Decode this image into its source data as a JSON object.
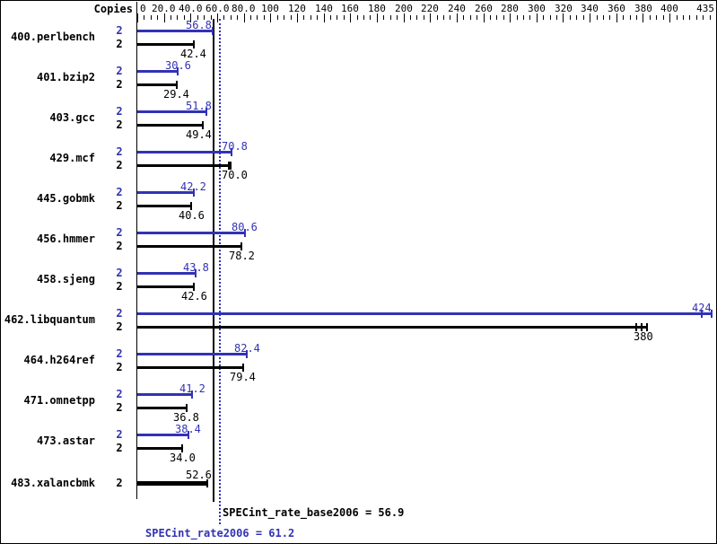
{
  "header": {
    "copies_label": "Copies"
  },
  "colors": {
    "peak": "#3232b4",
    "base": "#000000",
    "background": "#ffffff"
  },
  "summary": {
    "base_text": "SPECint_rate_base2006 = 56.9",
    "peak_text": "SPECint_rate2006 = 61.2"
  },
  "chart_data": {
    "type": "bar",
    "orientation": "horizontal",
    "legend": "none",
    "grid": "off",
    "axis": {
      "position": "top",
      "xlim": [
        0,
        435
      ],
      "minor_step": 5,
      "major_ticks": [
        {
          "value": 0,
          "label": "0"
        },
        {
          "value": 20,
          "label": "20.0"
        },
        {
          "value": 40,
          "label": "40.0"
        },
        {
          "value": 60,
          "label": "60.0"
        },
        {
          "value": 80,
          "label": "80.0"
        },
        {
          "value": 100,
          "label": "100"
        },
        {
          "value": 120,
          "label": "120"
        },
        {
          "value": 140,
          "label": "140"
        },
        {
          "value": 160,
          "label": "160"
        },
        {
          "value": 180,
          "label": "180"
        },
        {
          "value": 200,
          "label": "200"
        },
        {
          "value": 220,
          "label": "220"
        },
        {
          "value": 240,
          "label": "240"
        },
        {
          "value": 260,
          "label": "260"
        },
        {
          "value": 280,
          "label": "280"
        },
        {
          "value": 300,
          "label": "300"
        },
        {
          "value": 320,
          "label": "320"
        },
        {
          "value": 340,
          "label": "340"
        },
        {
          "value": 360,
          "label": "360"
        },
        {
          "value": 380,
          "label": "380"
        },
        {
          "value": 400,
          "label": "400"
        },
        {
          "value": 435,
          "label": "435"
        }
      ]
    },
    "series_names": [
      "SPECint_rate2006 (peak, blue)",
      "SPECint_rate_base2006 (base, black)"
    ],
    "benchmarks": [
      {
        "name": "400.perlbench",
        "copies": "2",
        "peak": {
          "value": 56.8,
          "label": "56.8"
        },
        "base": {
          "value": 42.4,
          "label": "42.4"
        }
      },
      {
        "name": "401.bzip2",
        "copies": "2",
        "peak": {
          "value": 30.6,
          "label": "30.6"
        },
        "base": {
          "value": 29.4,
          "label": "29.4"
        }
      },
      {
        "name": "403.gcc",
        "copies": "2",
        "peak": {
          "value": 51.8,
          "label": "51.8"
        },
        "base": {
          "value": 49.4,
          "label": "49.4"
        }
      },
      {
        "name": "429.mcf",
        "copies": "2",
        "peak": {
          "value": 70.8,
          "label": "70.8"
        },
        "base": {
          "value": 70.0,
          "label": "70.0",
          "run_ticks": [
            68.6,
            70.0
          ]
        }
      },
      {
        "name": "445.gobmk",
        "copies": "2",
        "peak": {
          "value": 42.2,
          "label": "42.2"
        },
        "base": {
          "value": 40.6,
          "label": "40.6"
        }
      },
      {
        "name": "456.hmmer",
        "copies": "2",
        "peak": {
          "value": 80.6,
          "label": "80.6"
        },
        "base": {
          "value": 78.2,
          "label": "78.2"
        }
      },
      {
        "name": "458.sjeng",
        "copies": "2",
        "peak": {
          "value": 43.8,
          "label": "43.8"
        },
        "base": {
          "value": 42.6,
          "label": "42.6"
        }
      },
      {
        "name": "462.libquantum",
        "copies": "2",
        "peak": {
          "value": 424,
          "label": "424",
          "run_ticks": [
            424,
            431.5
          ]
        },
        "base": {
          "value": 380,
          "label": "380",
          "run_ticks": [
            375,
            379,
            383
          ]
        }
      },
      {
        "name": "464.h264ref",
        "copies": "2",
        "peak": {
          "value": 82.4,
          "label": "82.4"
        },
        "base": {
          "value": 79.4,
          "label": "79.4"
        }
      },
      {
        "name": "471.omnetpp",
        "copies": "2",
        "peak": {
          "value": 41.2,
          "label": "41.2"
        },
        "base": {
          "value": 36.8,
          "label": "36.8"
        }
      },
      {
        "name": "473.astar",
        "copies": "2",
        "peak": {
          "value": 38.4,
          "label": "38.4"
        },
        "base": {
          "value": 34.0,
          "label": "34.0"
        }
      },
      {
        "name": "483.xalancbmk",
        "copies": "2",
        "merged": true,
        "peak": {
          "value": 52.6,
          "label": "52.6"
        },
        "base": {
          "value": 52.6,
          "label": "52.6"
        }
      }
    ],
    "reference_lines": [
      {
        "name": "base",
        "value": 56.9,
        "style": "solid",
        "color": "#000000"
      },
      {
        "name": "peak",
        "value": 61.2,
        "style": "dotted",
        "color": "#3232b4"
      }
    ]
  }
}
